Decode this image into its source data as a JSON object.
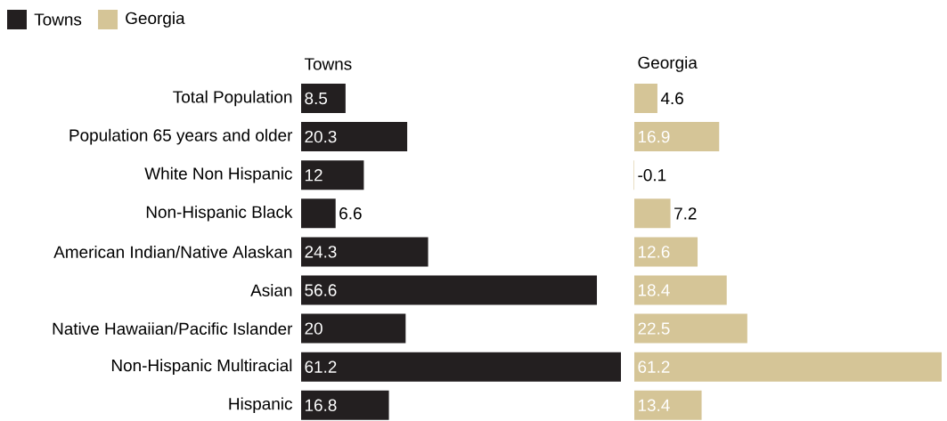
{
  "chart_data": [
    {
      "type": "bar",
      "orientation": "horizontal",
      "title": "Towns",
      "categories": [
        "Total Population",
        "Population 65 years and older",
        "White Non Hispanic",
        "Non-Hispanic Black",
        "American Indian/Native Alaskan",
        "Asian",
        "Native Hawaiian/Pacific Islander",
        "Non-Hispanic Multiracial",
        "Hispanic"
      ],
      "series": [
        {
          "name": "Towns",
          "color": "#231f20",
          "values": [
            8.5,
            20.3,
            12,
            6.6,
            24.3,
            56.6,
            20,
            61.2,
            16.8
          ]
        }
      ],
      "data_labels": true,
      "legend": "top left",
      "tick_labels": "y"
    },
    {
      "type": "bar",
      "orientation": "horizontal",
      "title": "Georgia",
      "categories": [
        null,
        null,
        null,
        null,
        null,
        null,
        null,
        null,
        null
      ],
      "series": [
        {
          "name": "Georgia",
          "color": "#d5c597",
          "values": [
            4.6,
            16.9,
            -0.1,
            7.2,
            12.6,
            18.4,
            22.5,
            61.2,
            13.4
          ]
        }
      ],
      "data_labels": true,
      "legend": "top left",
      "tick_labels": false
    }
  ]
}
